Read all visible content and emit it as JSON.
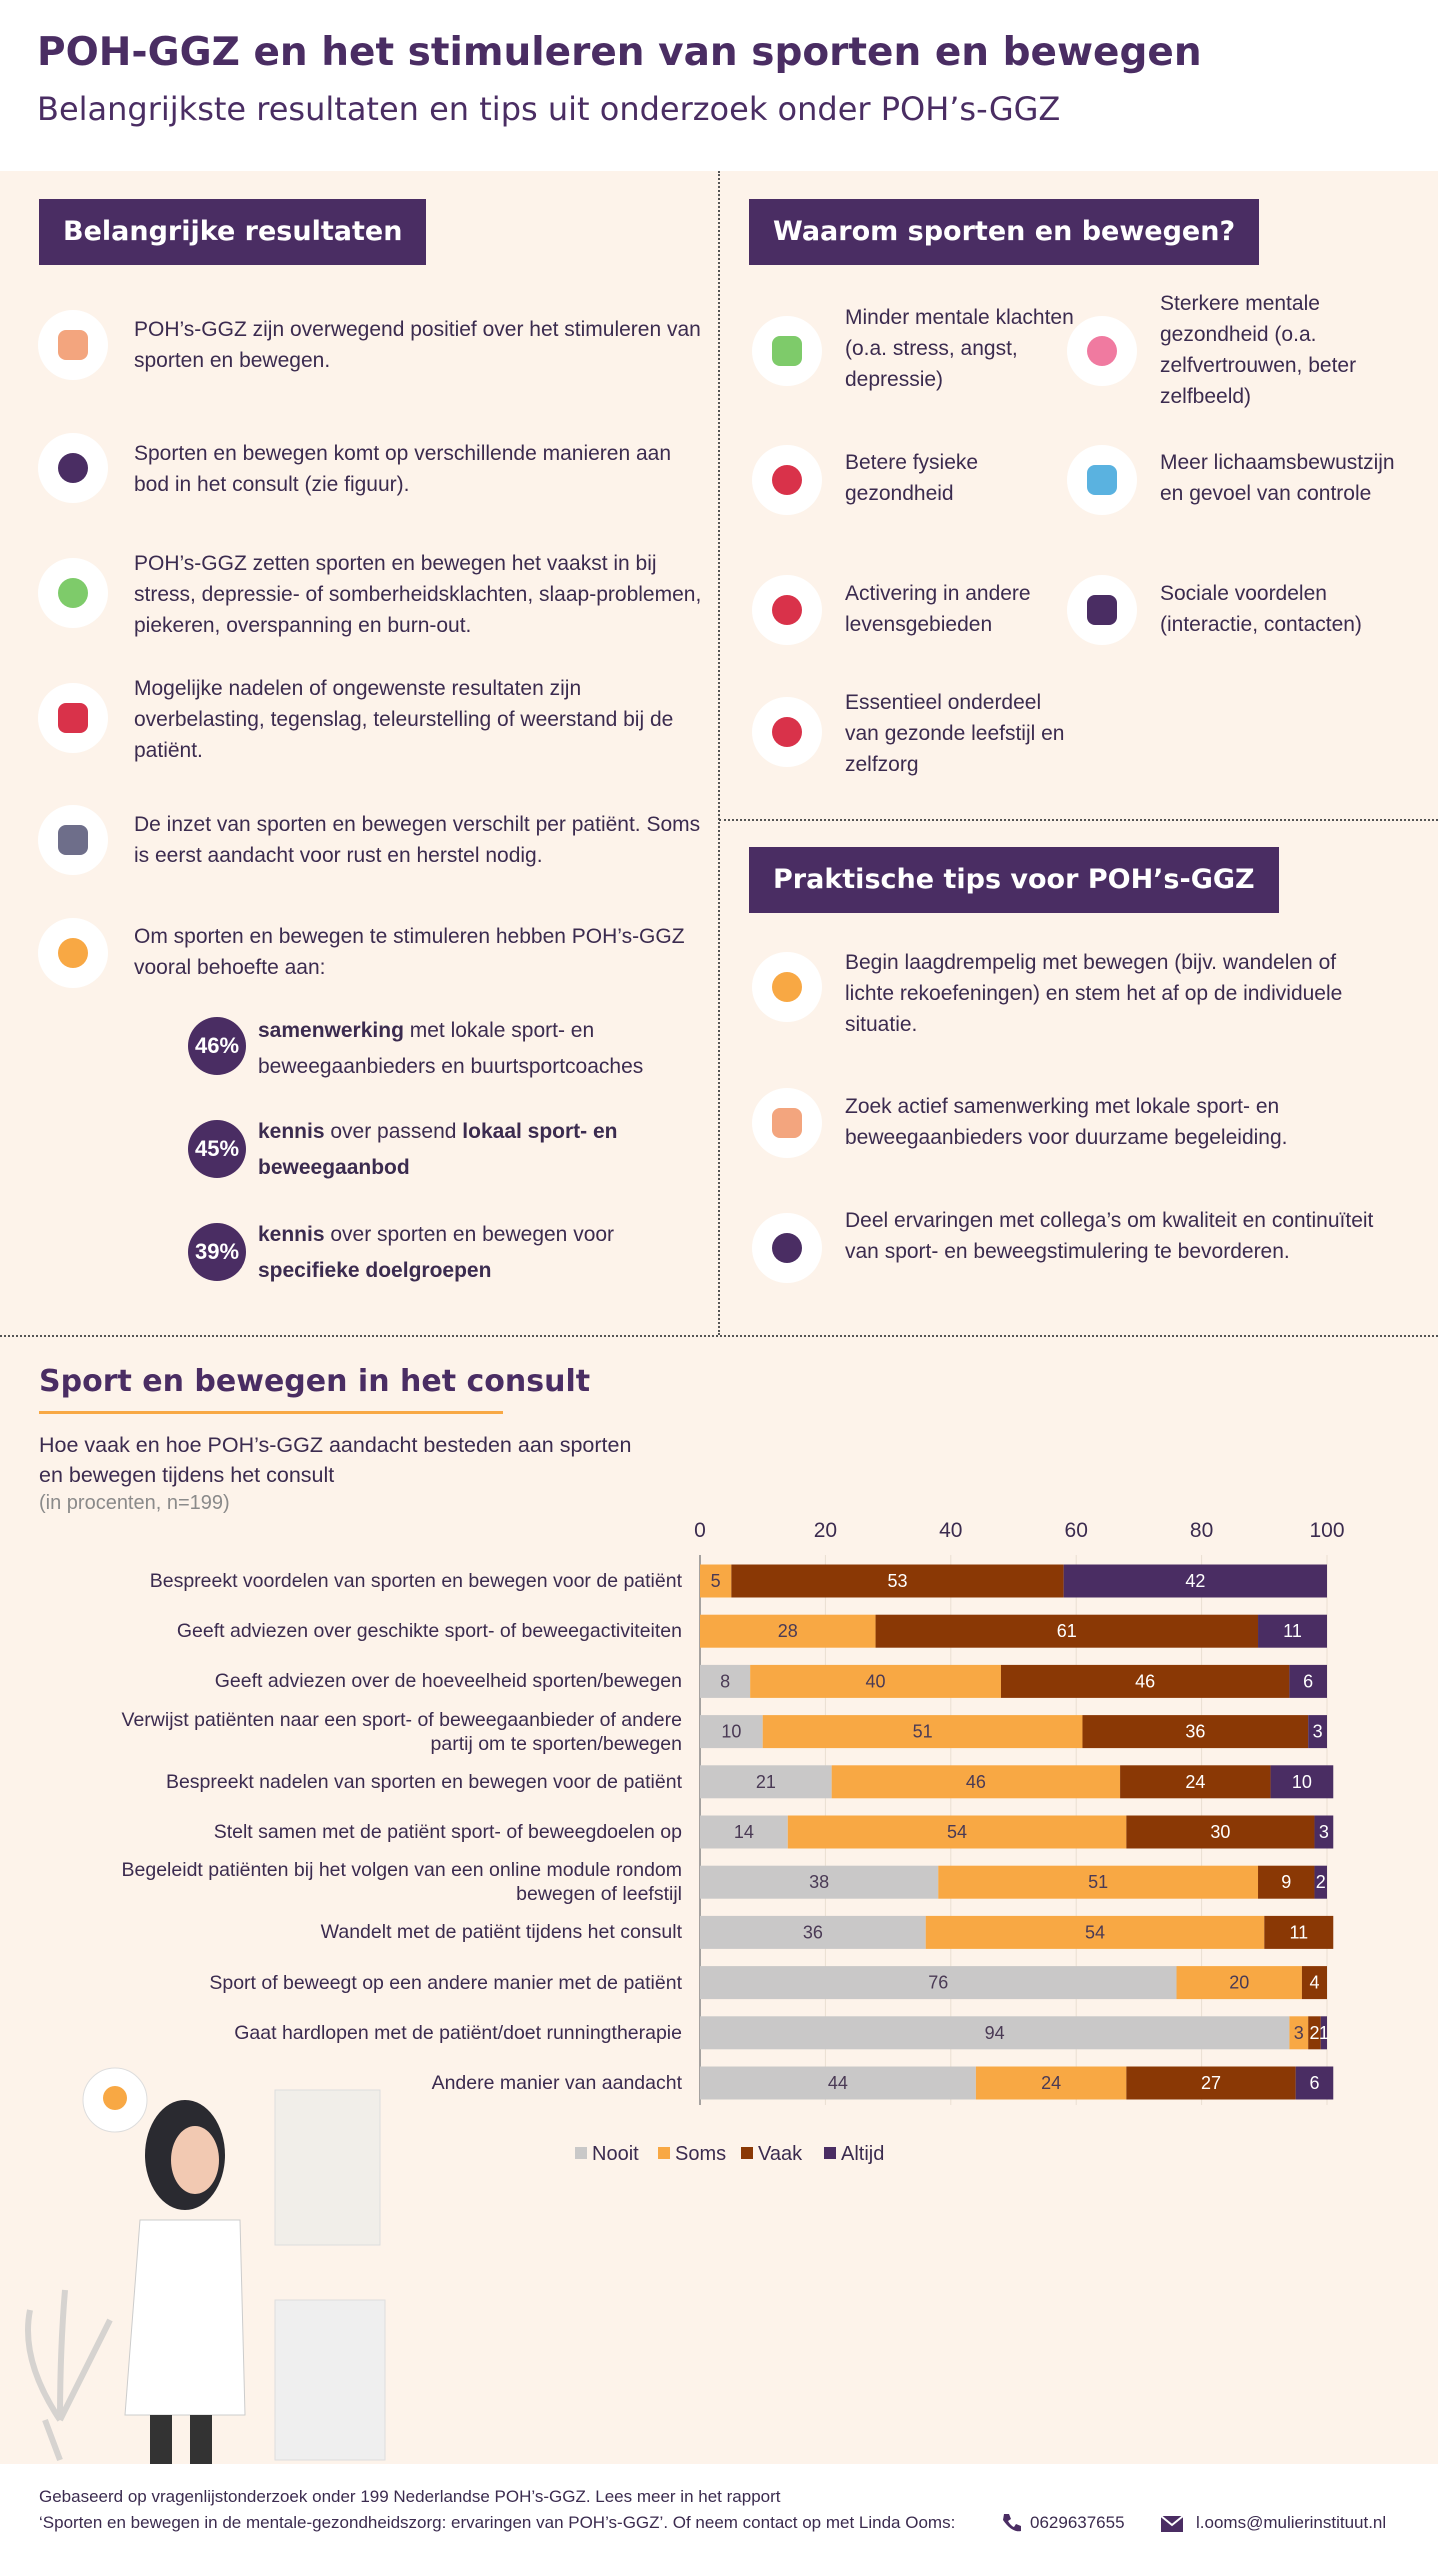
{
  "header": {
    "title": "POH-GGZ en het stimuleren van sporten en bewegen",
    "subtitle": "Belangrijkste resultaten en tips uit onderzoek onder POH’s-GGZ"
  },
  "results": {
    "heading": "Belangrijke resultaten",
    "items": [
      "POH’s-GGZ zijn overwegend positief over het stimuleren van sporten en bewegen.",
      "Sporten en bewegen komt op verschillende manieren aan bod in het consult (zie figuur).",
      "POH’s-GGZ zetten sporten en bewegen het vaakst in bij stress, depressie- of somberheidsklachten, slaap-problemen, piekeren, overspanning en burn-out.",
      "Mogelijke nadelen of ongewenste resultaten zijn overbelasting, tegenslag, teleurstelling of weerstand bij de patiënt.",
      "De inzet van sporten en bewegen verschilt per patiënt. Soms is eerst aandacht voor rust en herstel nodig.",
      "Om sporten en bewegen te stimuleren hebben POH’s-GGZ vooral behoefte aan:"
    ],
    "needs": [
      {
        "percent": "46%",
        "parts": [
          {
            "text": "samenwerking",
            "bold": true
          },
          {
            "text": " met lokale sport- en beweegaanbieders en buurtsportcoaches",
            "bold": false
          }
        ]
      },
      {
        "percent": "45%",
        "parts": [
          {
            "text": "kennis",
            "bold": true
          },
          {
            "text": " over passend ",
            "bold": false
          },
          {
            "text": "lokaal sport- en beweegaanbod",
            "bold": true
          }
        ]
      },
      {
        "percent": "39%",
        "parts": [
          {
            "text": "kennis",
            "bold": true
          },
          {
            "text": " over sporten en bewegen voor ",
            "bold": false
          },
          {
            "text": "specifieke doelgroepen",
            "bold": true
          }
        ]
      }
    ]
  },
  "why": {
    "heading": "Waarom sporten en bewegen?",
    "items": [
      "Minder mentale klachten (o.a. stress, angst, depressie)",
      "Sterkere mentale gezondheid (o.a. zelfvertrouwen, beter zelfbeeld)",
      "Betere fysieke gezondheid",
      "Meer lichaamsbewustzijn en gevoel van controle",
      "Activering in andere levensgebieden",
      "Sociale voordelen (interactie, contacten)",
      "Essentieel onderdeel van gezonde leefstijl en zelfzorg"
    ]
  },
  "tips": {
    "heading": "Praktische tips voor POH’s-GGZ",
    "items": [
      "Begin laagdrempelig met bewegen (bijv. wandelen of lichte rekoefeningen) en stem het af op de individuele situatie.",
      "Zoek actief samenwerking met lokale sport- en beweegaanbieders voor duurzame begeleiding.",
      "Deel ervaringen met collega’s om kwaliteit en continuïteit van sport- en beweegstimulering te bevorderen."
    ]
  },
  "consult": {
    "heading": "Sport en bewegen in het consult",
    "description": "Hoe vaak en hoe POH’s-GGZ aandacht besteden aan sporten en bewegen tijdens het consult",
    "note": "(in procenten, n=199)"
  },
  "chart_data": {
    "type": "stacked_bar_horizontal",
    "categories": [
      "Bespreekt voordelen van sporten en bewegen voor de patiënt",
      "Geeft adviezen over geschikte sport- of beweegactiviteiten",
      "Geeft adviezen over de hoeveelheid sporten/bewegen",
      "Verwijst patiënten naar een sport- of beweegaanbieder of andere partij om te sporten/bewegen",
      "Bespreekt nadelen van sporten en bewegen voor de patiënt",
      "Stelt samen met de patiënt sport- of beweegdoelen op",
      "Begeleidt patiënten bij het volgen van een online module rondom bewegen of leefstijl",
      "Wandelt met de patiënt tijdens het consult",
      "Sport of beweegt op een andere manier met de patiënt",
      "Gaat hardlopen met de patiënt/doet runningtherapie",
      "Andere manier van aandacht"
    ],
    "series": [
      {
        "name": "Nooit",
        "color": "#c9c8c8",
        "label_color": "#4a3a55",
        "values": [
          0,
          0,
          8,
          10,
          21,
          14,
          38,
          36,
          76,
          94,
          44
        ]
      },
      {
        "name": "Soms",
        "color": "#f8a844",
        "label_color": "#4a3a55",
        "values": [
          5,
          28,
          40,
          51,
          46,
          54,
          51,
          54,
          20,
          3,
          24
        ]
      },
      {
        "name": "Vaak",
        "color": "#8a3805",
        "label_color": "#ffffff",
        "values": [
          53,
          61,
          46,
          36,
          24,
          30,
          9,
          11,
          4,
          2,
          27
        ]
      },
      {
        "name": "Altijd",
        "color": "#4a2d63",
        "label_color": "#ffffff",
        "values": [
          42,
          11,
          6,
          3,
          10,
          3,
          2,
          0,
          0,
          1,
          6
        ]
      }
    ],
    "xlim": [
      0,
      100
    ],
    "xticks": [
      0,
      20,
      40,
      60,
      80,
      100
    ],
    "grid": true
  },
  "footer": {
    "text_1": "Gebaseerd op vragenlijstonderzoek onder 199 Nederlandse POH’s-GGZ. Lees meer in het rapport",
    "text_2": "‘Sporten en bewegen in de mentale-gezondheidszorg: ervaringen van POH’s-GGZ’. Of neem contact op met Linda Ooms:",
    "phone": "0629637655",
    "email": "l.ooms@mulierinstituut.nl"
  }
}
